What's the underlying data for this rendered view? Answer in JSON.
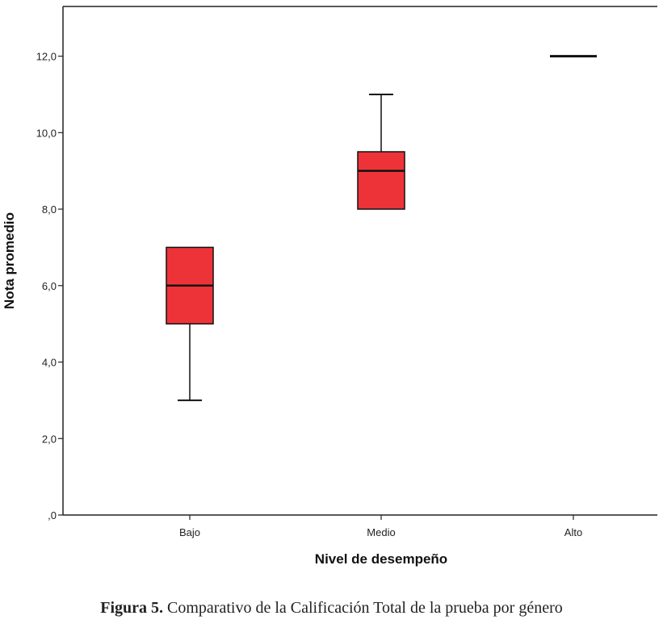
{
  "chart_data": {
    "type": "boxplot",
    "xlabel": "Nivel de desempeño",
    "ylabel": "Nota promedio",
    "ylim": [
      0,
      13.3
    ],
    "yticks": [
      0,
      2,
      4,
      6,
      8,
      10,
      12
    ],
    "ytick_labels": [
      ",0",
      "2,0",
      "4,0",
      "6,0",
      "8,0",
      "10,0",
      "12,0"
    ],
    "categories": [
      "Bajo",
      "Medio",
      "Alto"
    ],
    "boxes": [
      {
        "category": "Bajo",
        "min": 3,
        "q1": 5,
        "median": 6,
        "q3": 7,
        "max": 7
      },
      {
        "category": "Medio",
        "min": 8,
        "q1": 8,
        "median": 9,
        "q3": 9.5,
        "max": 11
      },
      {
        "category": "Alto",
        "min": 12,
        "q1": 12,
        "median": 12,
        "q3": 12,
        "max": 12
      }
    ],
    "box_color": "#ee3338",
    "grid": false
  },
  "caption": {
    "label": "Figura 5.",
    "text": " Comparativo de la Calificación Total de la prueba por género"
  }
}
